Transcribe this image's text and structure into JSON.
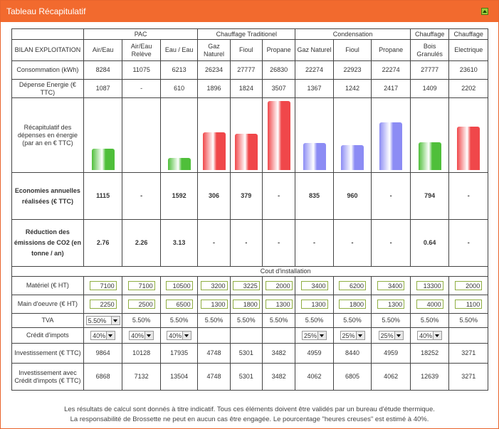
{
  "title": "Tableau Récapitulatif",
  "groups": {
    "pac": "PAC",
    "trad": "Chauffage Traditionel",
    "cond": "Condensation",
    "chauff1": "Chauffage",
    "chauff2": "Chauffage"
  },
  "bilan": "BILAN EXPLOITATION",
  "columns": [
    "Air/Eau",
    "Air/Eau Relève",
    "Eau / Eau",
    "Gaz Naturel",
    "Fioul",
    "Propane",
    "Gaz Naturel",
    "Fioul",
    "Propane",
    "Bois Granulés",
    "Electrique"
  ],
  "rows": {
    "consommation": {
      "label": "Consommation (kWh)",
      "values": [
        "8284",
        "11075",
        "6213",
        "26234",
        "27777",
        "26830",
        "22274",
        "22923",
        "22274",
        "27777",
        "23610"
      ]
    },
    "depense": {
      "label": "Dépense Energie (€ TTC)",
      "values": [
        "1087",
        "-",
        "610",
        "1896",
        "1824",
        "3507",
        "1367",
        "1242",
        "2417",
        "1409",
        "2202"
      ]
    },
    "recap": {
      "label": "Récapitulatif des dépenses en énergie (par an en € TTC)"
    },
    "economies": {
      "label": "Economies annuelles réalisées (€ TTC)",
      "values": [
        "1115",
        "-",
        "1592",
        "306",
        "379",
        "-",
        "835",
        "960",
        "-",
        "794",
        "-"
      ]
    },
    "reduction": {
      "label": "Réduction des émissions de CO2 (en tonne / an)",
      "values": [
        "2.76",
        "2.26",
        "3.13",
        "-",
        "-",
        "-",
        "-",
        "-",
        "-",
        "0.64",
        "-"
      ]
    },
    "cout": {
      "label": "Cout d'installation"
    },
    "materiel": {
      "label": "Matériel (€ HT)",
      "values": [
        "7100",
        "7100",
        "10500",
        "3200",
        "3225",
        "2000",
        "3400",
        "6200",
        "3400",
        "13300",
        "2000"
      ]
    },
    "main": {
      "label": "Main d'oeuvre (€ HT)",
      "values": [
        "2250",
        "2500",
        "6500",
        "1300",
        "1800",
        "1300",
        "1300",
        "1800",
        "1300",
        "4000",
        "1100"
      ]
    },
    "tva": {
      "label": "TVA",
      "first": "5.50%",
      "values": [
        "5.50%",
        "5.50%",
        "5.50%",
        "5.50%",
        "5.50%",
        "5.50%",
        "5.50%",
        "5.50%",
        "5.50%",
        "5.50%"
      ]
    },
    "credit": {
      "label": "Crédit d'impots",
      "values": [
        "40%",
        "40%",
        "40%",
        "",
        "",
        "",
        "25%",
        "25%",
        "25%",
        "40%",
        ""
      ]
    },
    "invest": {
      "label": "Investissement (€ TTC)",
      "values": [
        "9864",
        "10128",
        "17935",
        "4748",
        "5301",
        "3482",
        "4959",
        "8440",
        "4959",
        "18252",
        "3271"
      ]
    },
    "invest2": {
      "label": "Investissement avec Crédit d'impots (€ TTC)",
      "values": [
        "6868",
        "7132",
        "13504",
        "4748",
        "5301",
        "3482",
        "4062",
        "6805",
        "4062",
        "12639",
        "3271"
      ]
    }
  },
  "chart_data": {
    "type": "bar",
    "categories": [
      "Air/Eau",
      "Air/Eau Relève",
      "Eau / Eau",
      "Gaz Naturel",
      "Fioul",
      "Propane",
      "Gaz Naturel",
      "Fioul",
      "Propane",
      "Bois Granulés",
      "Electrique"
    ],
    "values": [
      1087,
      null,
      610,
      1896,
      1824,
      3507,
      1367,
      1242,
      2417,
      1409,
      2202
    ],
    "colors": [
      "#4fbf3a",
      "#4fbf3a",
      "#4fbf3a",
      "#f0474a",
      "#f0474a",
      "#f0474a",
      "#8c8cf4",
      "#8c8cf4",
      "#8c8cf4",
      "#4fbf3a",
      "#f0474a"
    ],
    "ylim": [
      0,
      3600
    ]
  },
  "footer": {
    "line1": "Les résultats de calcul sont donnés à titre indicatif. Tous ces éléments doivent être validés par un bureau d'étude thermique.",
    "line2": "La responsabilité de Brossette ne peut en aucun cas être engagée. Le pourcentage \"heures creuses\" est estimé à 40%."
  }
}
